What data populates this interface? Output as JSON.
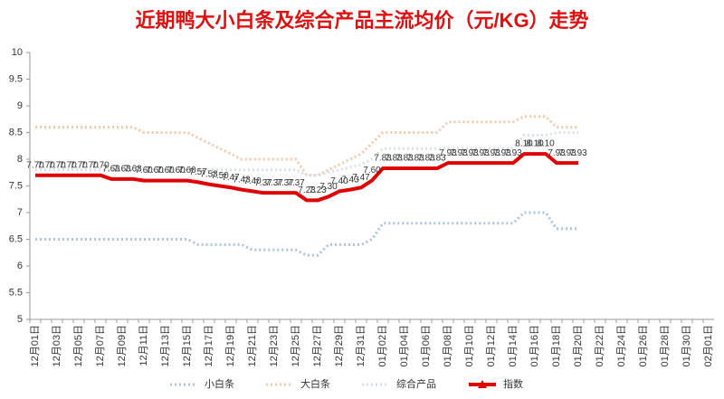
{
  "chart_data": {
    "type": "line",
    "title": "近期鸭大小白条及综合产品主流均价（元/KG）走势",
    "categories": [
      "12月01日",
      null,
      "12月03日",
      null,
      "12月05日",
      null,
      "12月07日",
      null,
      "12月09日",
      null,
      "12月11日",
      null,
      "12月13日",
      null,
      "12月15日",
      null,
      "12月17日",
      null,
      "12月19日",
      null,
      "12月21日",
      null,
      "12月23日",
      null,
      "12月25日",
      null,
      "12月27日",
      null,
      "12月29日",
      null,
      "12月31日",
      null,
      "01月02日",
      null,
      "01月04日",
      null,
      "01月06日",
      null,
      "01月08日",
      null,
      "01月10日",
      null,
      "01月12日",
      null,
      "01月14日",
      null,
      "01月16日",
      null,
      "01月18日",
      null,
      "01月20日",
      null,
      "01月22日",
      null,
      "01月24日",
      null,
      "01月26日",
      null,
      "01月28日",
      null,
      "01月30日",
      null,
      "02月01日"
    ],
    "series": [
      {
        "name": "小白条",
        "color": "#a9c4e4",
        "style": "dotted",
        "values": [
          6.5,
          6.5,
          6.5,
          6.5,
          6.5,
          6.5,
          6.5,
          6.5,
          6.5,
          6.5,
          6.5,
          6.5,
          6.5,
          6.5,
          6.5,
          6.4,
          6.4,
          6.4,
          6.4,
          6.4,
          6.3,
          6.3,
          6.3,
          6.3,
          6.3,
          6.2,
          6.2,
          6.4,
          6.4,
          6.4,
          6.4,
          6.5,
          6.8,
          6.8,
          6.8,
          6.8,
          6.8,
          6.8,
          6.8,
          6.8,
          6.8,
          6.8,
          6.8,
          6.8,
          6.8,
          7.0,
          7.0,
          7.0,
          6.7,
          6.7,
          6.7,
          null,
          null,
          null,
          null,
          null,
          null,
          null,
          null,
          null,
          null,
          null,
          null
        ]
      },
      {
        "name": "大白条",
        "color": "#f6c8a8",
        "style": "dotted",
        "values": [
          8.6,
          8.6,
          8.6,
          8.6,
          8.6,
          8.6,
          8.6,
          8.6,
          8.6,
          8.6,
          8.5,
          8.5,
          8.5,
          8.5,
          8.5,
          8.4,
          8.3,
          8.2,
          8.1,
          8.0,
          8.0,
          8.0,
          8.0,
          8.0,
          8.0,
          7.7,
          7.7,
          7.8,
          7.9,
          8.0,
          8.1,
          8.3,
          8.5,
          8.5,
          8.5,
          8.5,
          8.5,
          8.5,
          8.7,
          8.7,
          8.7,
          8.7,
          8.7,
          8.7,
          8.7,
          8.8,
          8.8,
          8.8,
          8.6,
          8.6,
          8.6,
          null,
          null,
          null,
          null,
          null,
          null,
          null,
          null,
          null,
          null,
          null,
          null
        ]
      },
      {
        "name": "综合产品",
        "color": "#d6dfee",
        "style": "dotted",
        "values": [
          7.8,
          7.8,
          7.8,
          7.8,
          7.8,
          7.8,
          7.8,
          7.8,
          7.8,
          7.8,
          7.8,
          7.8,
          7.8,
          7.8,
          7.8,
          7.8,
          7.8,
          7.8,
          7.8,
          7.8,
          7.8,
          7.8,
          7.8,
          7.8,
          7.8,
          7.7,
          7.7,
          7.75,
          7.8,
          7.85,
          7.9,
          8.0,
          8.2,
          8.2,
          8.2,
          8.2,
          8.2,
          8.2,
          8.2,
          8.2,
          8.2,
          8.2,
          8.2,
          8.2,
          8.2,
          8.45,
          8.45,
          8.45,
          8.5,
          8.5,
          8.5,
          null,
          null,
          null,
          null,
          null,
          null,
          null,
          null,
          null,
          null,
          null,
          null
        ]
      },
      {
        "name": "指数",
        "color": "#e00000",
        "style": "solid",
        "values": [
          7.7,
          7.7,
          7.7,
          7.7,
          7.7,
          7.7,
          7.7,
          7.63,
          7.63,
          7.63,
          7.6,
          7.6,
          7.6,
          7.6,
          7.6,
          7.57,
          7.53,
          7.5,
          7.47,
          7.43,
          7.4,
          7.37,
          7.37,
          7.37,
          7.37,
          7.23,
          7.23,
          7.3,
          7.4,
          7.43,
          7.47,
          7.6,
          7.83,
          7.83,
          7.83,
          7.83,
          7.83,
          7.83,
          7.93,
          7.93,
          7.93,
          7.93,
          7.93,
          7.93,
          7.93,
          8.1,
          8.1,
          8.1,
          7.93,
          7.93,
          7.93,
          null,
          null,
          null,
          null,
          null,
          null,
          null,
          null,
          null,
          null,
          null,
          null
        ],
        "value_labels": [
          "7.70",
          "7.70",
          "7.70",
          "7.70",
          "7.70",
          "7.70",
          "7.70",
          "7.63",
          "7.63",
          "7.63",
          "7.60",
          "7.60",
          "7.60",
          "7.60",
          "7.60",
          "7.57",
          "7.53",
          "7.50",
          "7.47",
          "7.43",
          "7.40",
          "7.37",
          "7.37",
          "7.37",
          "7.37",
          "7.23",
          "7.23",
          "7.30",
          "7.40",
          "7.43",
          "7.47",
          "7.60",
          "7.83",
          "7.83",
          "7.83",
          "7.83",
          "7.83",
          "7.83",
          "7.93",
          "7.93",
          "7.93",
          "7.93",
          "7.93",
          "7.93",
          "7.93",
          "8.10",
          "8.10",
          "8.10",
          "7.93",
          "7.93",
          "7.93",
          null,
          null,
          null,
          null,
          null,
          null,
          null,
          null,
          null,
          null,
          null,
          null
        ]
      }
    ],
    "ylim": [
      5,
      10
    ],
    "yticks": [
      5,
      5.5,
      6,
      6.5,
      7,
      7.5,
      8,
      8.5,
      9,
      9.5,
      10
    ],
    "grid": false,
    "legend": "bottom"
  }
}
